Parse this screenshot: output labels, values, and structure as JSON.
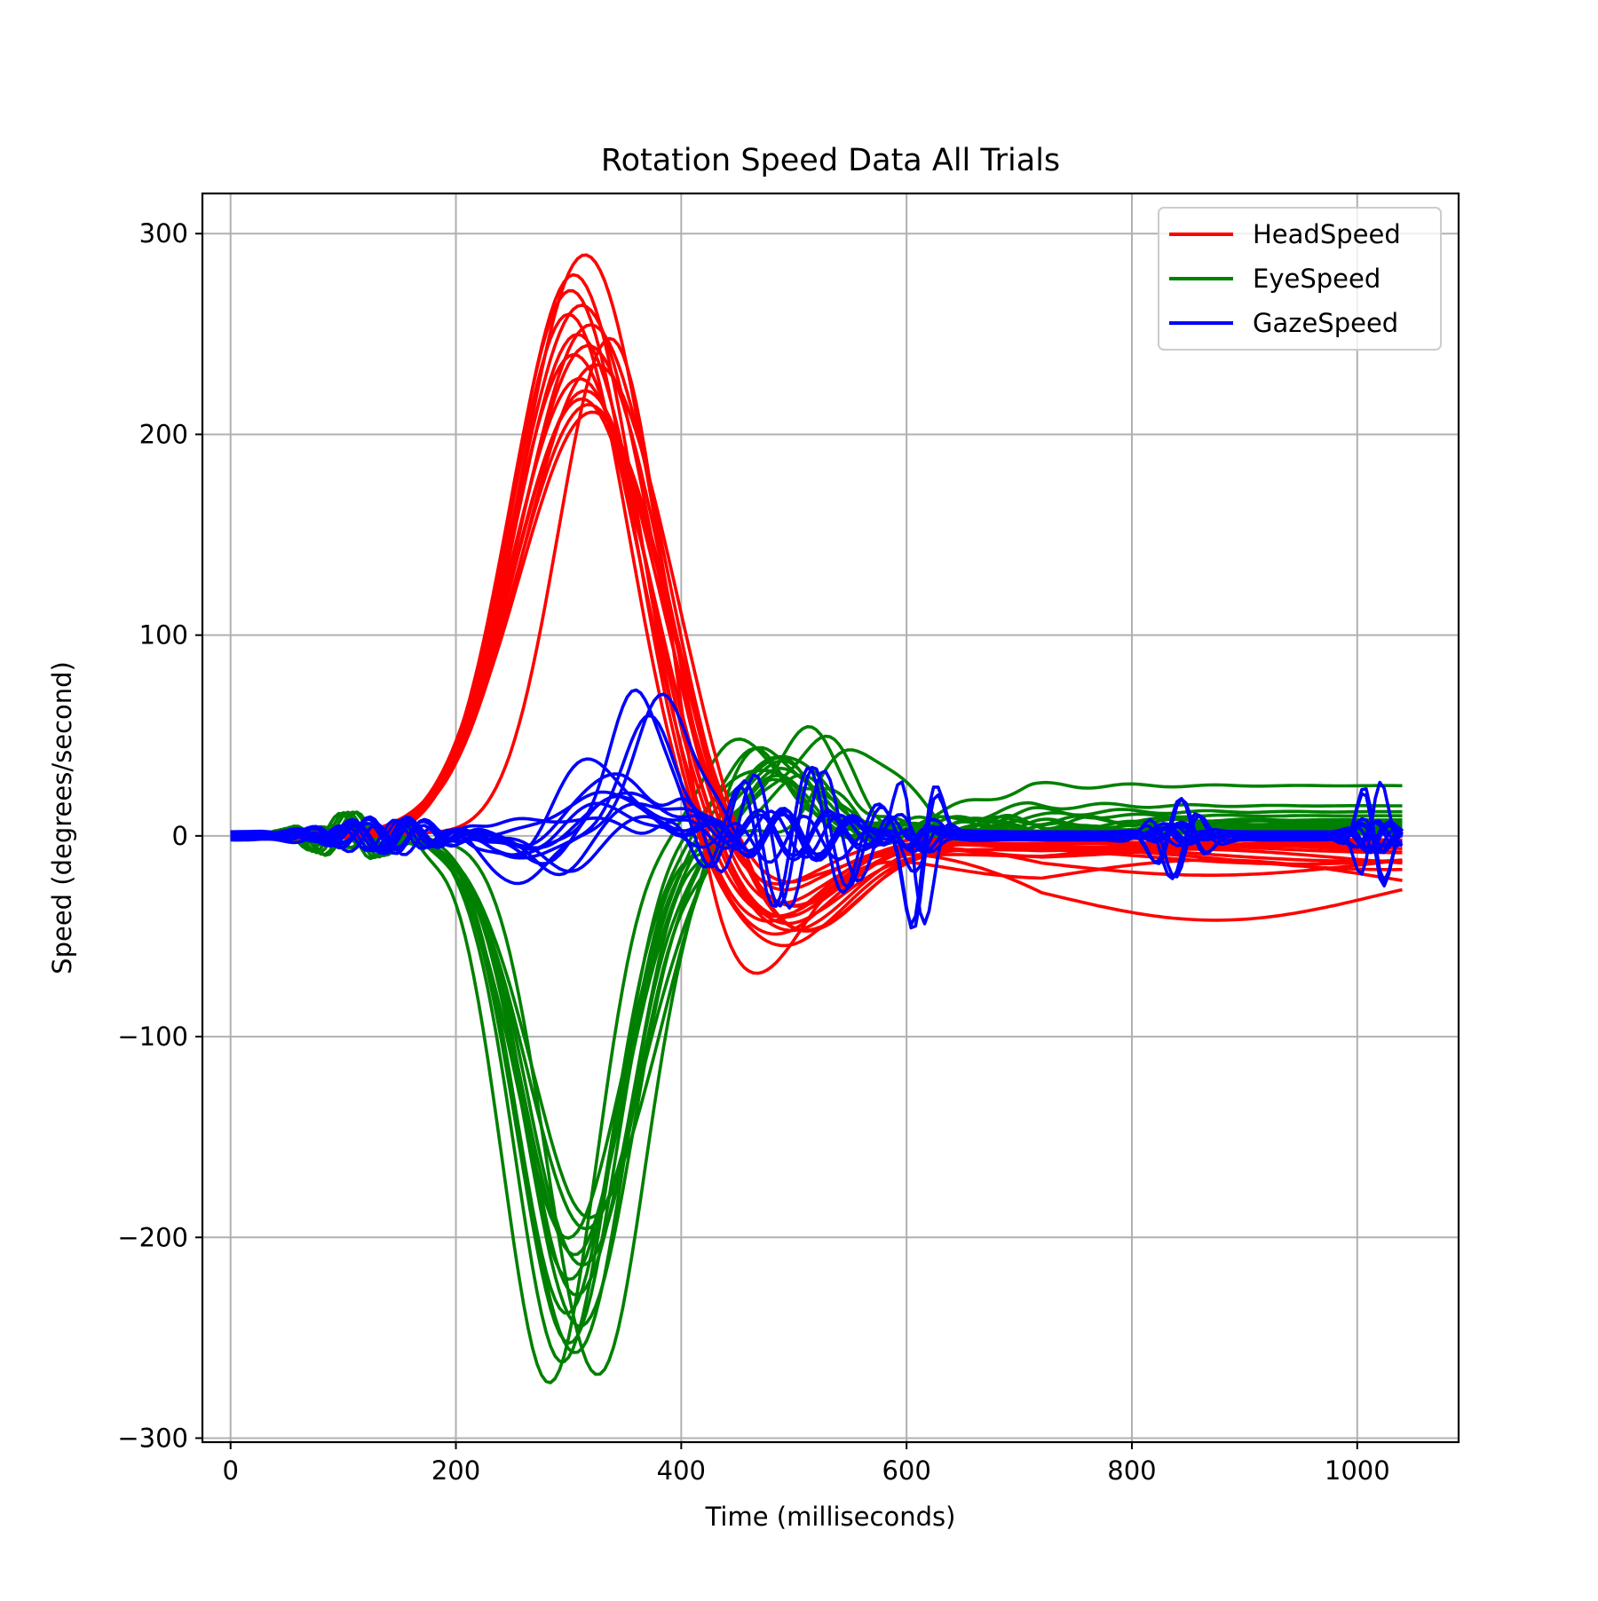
{
  "chart_data": {
    "type": "line",
    "title": "Rotation Speed Data All Trials",
    "xlabel": "Time (milliseconds)",
    "ylabel": "Speed (degrees/second)",
    "xlim": [
      -25,
      1090
    ],
    "ylim": [
      -302,
      320
    ],
    "xticks": [
      0,
      200,
      400,
      600,
      800,
      1000
    ],
    "yticks": [
      -300,
      -200,
      -100,
      0,
      100,
      200,
      300
    ],
    "xtick_labels": [
      "0",
      "200",
      "400",
      "600",
      "800",
      "1000"
    ],
    "ytick_labels": [
      "−300",
      "−200",
      "−100",
      "0",
      "100",
      "200",
      "300"
    ],
    "grid": true,
    "legend_position": "top-right",
    "x_end": 1040,
    "series_groups": [
      {
        "name": "HeadSpeed",
        "color": "#ff0000",
        "trials": [
          {
            "peak": 290,
            "center": 315,
            "width": 58,
            "neg": -38,
            "neg_center": 475,
            "tail": -8
          },
          {
            "peak": 280,
            "center": 305,
            "width": 55,
            "neg": -45,
            "neg_center": 470,
            "tail": -5
          },
          {
            "peak": 272,
            "center": 302,
            "width": 54,
            "neg": -50,
            "neg_center": 480,
            "tail": -10
          },
          {
            "peak": 265,
            "center": 312,
            "width": 60,
            "neg": -30,
            "neg_center": 465,
            "tail": -3
          },
          {
            "peak": 260,
            "center": 300,
            "width": 52,
            "neg": -55,
            "neg_center": 490,
            "tail": -12
          },
          {
            "peak": 255,
            "center": 320,
            "width": 62,
            "neg": -40,
            "neg_center": 485,
            "tail": -6
          },
          {
            "peak": 250,
            "center": 308,
            "width": 56,
            "neg": -48,
            "neg_center": 495,
            "tail": -4
          },
          {
            "peak": 245,
            "center": 318,
            "width": 63,
            "neg": -35,
            "neg_center": 470,
            "tail": -9
          },
          {
            "peak": 240,
            "center": 305,
            "width": 57,
            "neg": -42,
            "neg_center": 478,
            "tail": -2
          },
          {
            "peak": 235,
            "center": 325,
            "width": 65,
            "neg": -52,
            "neg_center": 500,
            "tail": -7
          },
          {
            "peak": 228,
            "center": 310,
            "width": 60,
            "neg": -46,
            "neg_center": 488,
            "tail": -11
          },
          {
            "peak": 222,
            "center": 315,
            "width": 62,
            "neg": -38,
            "neg_center": 492,
            "tail": -5
          },
          {
            "peak": 218,
            "center": 312,
            "width": 61,
            "neg": -44,
            "neg_center": 482,
            "tail": -14
          },
          {
            "peak": 215,
            "center": 318,
            "width": 64,
            "neg": -50,
            "neg_center": 505,
            "tail": -3
          },
          {
            "peak": 258,
            "center": 340,
            "width": 48,
            "neg": -80,
            "neg_center": 450,
            "tail": -20
          },
          {
            "peak": 212,
            "center": 322,
            "width": 66,
            "neg": -33,
            "neg_center": 470,
            "tail": -30
          }
        ]
      },
      {
        "name": "EyeSpeed",
        "color": "#008000",
        "trials": [
          {
            "peak": -273,
            "center": 283,
            "width": 48,
            "pos": 48,
            "pos_center": 455,
            "tail": 5
          },
          {
            "peak": -268,
            "center": 325,
            "width": 52,
            "pos": 45,
            "pos_center": 475,
            "tail": 8
          },
          {
            "peak": -262,
            "center": 295,
            "width": 50,
            "pos": 40,
            "pos_center": 465,
            "tail": 3
          },
          {
            "peak": -258,
            "center": 305,
            "width": 54,
            "pos": 50,
            "pos_center": 510,
            "tail": 2
          },
          {
            "peak": -252,
            "center": 300,
            "width": 52,
            "pos": 38,
            "pos_center": 480,
            "tail": 6
          },
          {
            "peak": -245,
            "center": 310,
            "width": 55,
            "pos": 42,
            "pos_center": 490,
            "tail": 4
          },
          {
            "peak": -238,
            "center": 298,
            "width": 50,
            "pos": 35,
            "pos_center": 470,
            "tail": 10
          },
          {
            "peak": -230,
            "center": 308,
            "width": 53,
            "pos": 30,
            "pos_center": 500,
            "tail": 1
          },
          {
            "peak": -222,
            "center": 302,
            "width": 51,
            "pos": 47,
            "pos_center": 520,
            "tail": 7
          },
          {
            "peak": -215,
            "center": 312,
            "width": 56,
            "pos": 44,
            "pos_center": 560,
            "tail": 3
          },
          {
            "peak": -208,
            "center": 305,
            "width": 54,
            "pos": 36,
            "pos_center": 485,
            "tail": 25
          },
          {
            "peak": -200,
            "center": 300,
            "width": 55,
            "pos": 33,
            "pos_center": 495,
            "tail": 15
          },
          {
            "peak": -195,
            "center": 315,
            "width": 60,
            "pos": 28,
            "pos_center": 505,
            "tail": 2
          },
          {
            "peak": -190,
            "center": 320,
            "width": 62,
            "pos": 30,
            "pos_center": 475,
            "tail": 12
          }
        ]
      },
      {
        "name": "GazeSpeed",
        "color": "#0000ff",
        "trials": [
          {
            "peak": 75,
            "center": 360,
            "width": 22,
            "tail": 0
          },
          {
            "peak": 70,
            "center": 385,
            "width": 25,
            "tail": 1
          },
          {
            "peak": 60,
            "center": 372,
            "width": 24,
            "tail": -1
          },
          {
            "peak": 40,
            "center": 310,
            "width": 35,
            "tail": 2
          },
          {
            "peak": 30,
            "center": 340,
            "width": 40,
            "tail": 0
          },
          {
            "peak": 25,
            "center": 300,
            "width": 45,
            "tail": -2
          },
          {
            "peak": 20,
            "center": 350,
            "width": 38,
            "tail": 1
          },
          {
            "peak": 22,
            "center": 330,
            "width": 42,
            "tail": 0
          },
          {
            "peak": 18,
            "center": 290,
            "width": 44,
            "tail": -1
          },
          {
            "peak": 15,
            "center": 360,
            "width": 40,
            "tail": 2
          },
          {
            "peak": 28,
            "center": 320,
            "width": 36,
            "tail": 0
          },
          {
            "peak": 12,
            "center": 345,
            "width": 48,
            "tail": -1
          }
        ]
      }
    ]
  }
}
